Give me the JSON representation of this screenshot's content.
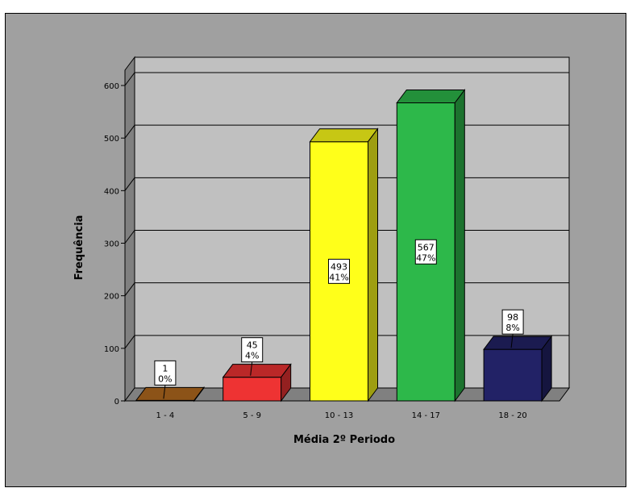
{
  "chart_data": {
    "type": "bar",
    "categories": [
      "1 - 4",
      "5 - 9",
      "10 - 13",
      "14 - 17",
      "18 - 20"
    ],
    "values": [
      1,
      45,
      493,
      567,
      98
    ],
    "percent_labels": [
      "0%",
      "4%",
      "41%",
      "47%",
      "8%"
    ],
    "xlabel": "Média 2º Periodo",
    "ylabel": "Frequência",
    "ylim": [
      0,
      600
    ],
    "yticks": [
      0,
      100,
      200,
      300,
      400,
      500,
      600
    ],
    "grid": true,
    "three_d": true,
    "colors": [
      "#b36b1f",
      "#ee3333",
      "#ffff1a",
      "#2db84a",
      "#222266"
    ]
  }
}
